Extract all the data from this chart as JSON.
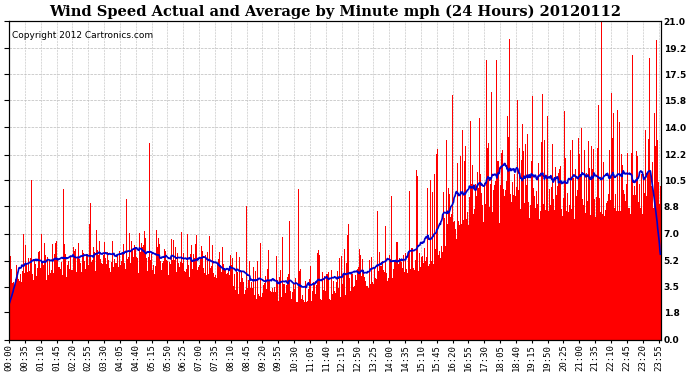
{
  "title": "Wind Speed Actual and Average by Minute mph (24 Hours) 20120112",
  "copyright": "Copyright 2012 Cartronics.com",
  "ylim": [
    0.0,
    21.0
  ],
  "yticks": [
    0.0,
    1.8,
    3.5,
    5.2,
    7.0,
    8.8,
    10.5,
    12.2,
    14.0,
    15.8,
    17.5,
    19.2,
    21.0
  ],
  "bar_color": "#ff0000",
  "line_color": "#0000cc",
  "background_color": "#ffffff",
  "grid_color": "#bbbbbb",
  "title_fontsize": 10.5,
  "copyright_fontsize": 6.5,
  "tick_fontsize": 6.5,
  "seed": 99,
  "n_minutes": 1440,
  "avg_window": 45
}
